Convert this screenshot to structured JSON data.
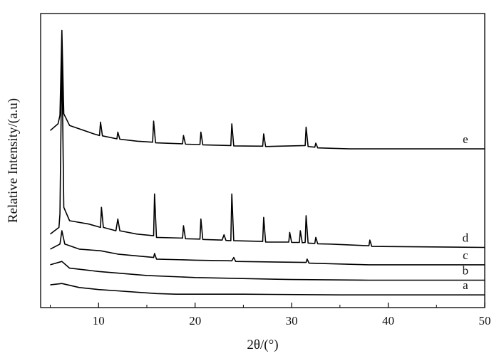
{
  "chart_data": {
    "type": "line",
    "title": "",
    "xlabel": "2θ/(°)",
    "ylabel": "Relative Intensity/(a.u)",
    "xlim": [
      4,
      50
    ],
    "x_ticks": [
      10,
      20,
      30,
      40,
      50
    ],
    "y_ticks_shown": false,
    "grid": false,
    "stacked_offset": true,
    "series": [
      {
        "name": "a",
        "points": [
          [
            5.0,
            2.8
          ],
          [
            6.2,
            3.2
          ],
          [
            8.0,
            2.0
          ],
          [
            10.0,
            1.4
          ],
          [
            12.0,
            1.0
          ],
          [
            14.0,
            0.6
          ],
          [
            16.0,
            0.2
          ],
          [
            18.0,
            0.0
          ],
          [
            25.0,
            0.0
          ],
          [
            35.0,
            -0.2
          ],
          [
            50.0,
            -0.2
          ]
        ]
      },
      {
        "name": "b",
        "points": [
          [
            5.0,
            8.8
          ],
          [
            6.2,
            9.8
          ],
          [
            7.0,
            7.8
          ],
          [
            10.0,
            6.8
          ],
          [
            15.0,
            5.6
          ],
          [
            20.0,
            5.0
          ],
          [
            30.0,
            4.4
          ],
          [
            38.0,
            4.2
          ],
          [
            50.0,
            4.2
          ]
        ]
      },
      {
        "name": "c",
        "points": [
          [
            5.0,
            13.5
          ],
          [
            6.0,
            15.0
          ],
          [
            6.2,
            19.0
          ],
          [
            6.5,
            15.0
          ],
          [
            8.0,
            13.5
          ],
          [
            10.2,
            13.0
          ],
          [
            12.0,
            12.0
          ],
          [
            15.7,
            11.0
          ],
          [
            15.8,
            12.2
          ],
          [
            16.0,
            10.5
          ],
          [
            20.0,
            10.2
          ],
          [
            23.8,
            10.0
          ],
          [
            24.0,
            11.0
          ],
          [
            24.2,
            9.8
          ],
          [
            31.5,
            9.5
          ],
          [
            31.6,
            10.5
          ],
          [
            31.8,
            9.3
          ],
          [
            38.0,
            8.8
          ],
          [
            50.0,
            8.8
          ]
        ]
      },
      {
        "name": "d",
        "points": [
          [
            5.0,
            18.0
          ],
          [
            5.9,
            20.0
          ],
          [
            6.0,
            24.0
          ],
          [
            6.2,
            72.0
          ],
          [
            6.4,
            26.0
          ],
          [
            7.0,
            22.0
          ],
          [
            9.0,
            21.0
          ],
          [
            10.2,
            20.0
          ],
          [
            10.3,
            26.0
          ],
          [
            10.5,
            20.0
          ],
          [
            11.8,
            19.0
          ],
          [
            12.0,
            22.5
          ],
          [
            12.2,
            19.0
          ],
          [
            14.0,
            18.0
          ],
          [
            15.7,
            17.5
          ],
          [
            15.8,
            30.0
          ],
          [
            16.0,
            17.0
          ],
          [
            18.7,
            16.8
          ],
          [
            18.8,
            20.5
          ],
          [
            19.0,
            16.6
          ],
          [
            20.5,
            16.5
          ],
          [
            20.6,
            22.5
          ],
          [
            20.8,
            16.4
          ],
          [
            22.8,
            16.2
          ],
          [
            23.0,
            17.8
          ],
          [
            23.2,
            16.1
          ],
          [
            23.7,
            16.0
          ],
          [
            23.8,
            30.0
          ],
          [
            24.0,
            16.0
          ],
          [
            27.0,
            15.8
          ],
          [
            27.1,
            23.0
          ],
          [
            27.3,
            15.6
          ],
          [
            29.7,
            15.6
          ],
          [
            29.8,
            18.5
          ],
          [
            30.0,
            15.5
          ],
          [
            30.8,
            15.5
          ],
          [
            30.9,
            19.0
          ],
          [
            31.1,
            15.4
          ],
          [
            31.4,
            15.5
          ],
          [
            31.5,
            23.5
          ],
          [
            31.7,
            15.3
          ],
          [
            32.4,
            15.2
          ],
          [
            32.5,
            17.0
          ],
          [
            32.7,
            15.1
          ],
          [
            34.0,
            15.0
          ],
          [
            38.0,
            14.5
          ],
          [
            38.1,
            16.2
          ],
          [
            38.3,
            14.3
          ],
          [
            50.0,
            14.0
          ]
        ]
      },
      {
        "name": "e",
        "points": [
          [
            5.0,
            49.0
          ],
          [
            5.8,
            51.0
          ],
          [
            6.0,
            53.5
          ],
          [
            6.2,
            79.0
          ],
          [
            6.4,
            54.0
          ],
          [
            7.0,
            50.5
          ],
          [
            9.5,
            48.0
          ],
          [
            10.1,
            47.5
          ],
          [
            10.2,
            51.5
          ],
          [
            10.4,
            47.4
          ],
          [
            11.9,
            46.5
          ],
          [
            12.0,
            48.5
          ],
          [
            12.2,
            46.4
          ],
          [
            14.0,
            45.8
          ],
          [
            15.6,
            45.5
          ],
          [
            15.7,
            51.8
          ],
          [
            15.9,
            45.3
          ],
          [
            18.7,
            45.0
          ],
          [
            18.8,
            47.5
          ],
          [
            19.0,
            44.9
          ],
          [
            20.5,
            44.8
          ],
          [
            20.6,
            48.5
          ],
          [
            20.8,
            44.7
          ],
          [
            23.7,
            44.5
          ],
          [
            23.8,
            51.0
          ],
          [
            24.0,
            44.4
          ],
          [
            27.0,
            44.3
          ],
          [
            27.1,
            48.0
          ],
          [
            27.3,
            44.2
          ],
          [
            31.4,
            44.5
          ],
          [
            31.5,
            50.0
          ],
          [
            31.7,
            44.2
          ],
          [
            32.4,
            44.0
          ],
          [
            32.5,
            45.2
          ],
          [
            32.7,
            43.8
          ],
          [
            36.0,
            43.5
          ],
          [
            50.0,
            43.5
          ]
        ]
      }
    ]
  }
}
